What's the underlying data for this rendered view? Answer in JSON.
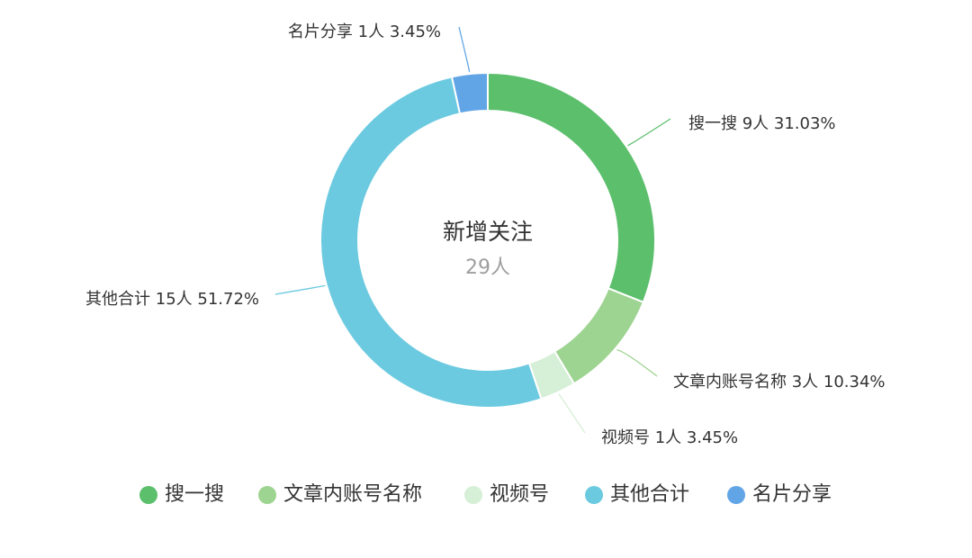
{
  "chart_data": {
    "type": "pie",
    "variant": "donut",
    "center": {
      "title": "新增关注",
      "value": "29人"
    },
    "slices": [
      {
        "name": "搜一搜",
        "count": 9,
        "unit": "人",
        "percent": 31.03,
        "label": "搜一搜  9人  31.03%",
        "color": "#5BBF6C"
      },
      {
        "name": "文章内账号名称",
        "count": 3,
        "unit": "人",
        "percent": 10.34,
        "label": "文章内账号名称  3人  10.34%",
        "color": "#9ED491"
      },
      {
        "name": "视频号",
        "count": 1,
        "unit": "人",
        "percent": 3.45,
        "label": "视频号  1人  3.45%",
        "color": "#D6EFD7"
      },
      {
        "name": "其他合计",
        "count": 15,
        "unit": "人",
        "percent": 51.72,
        "label": "其他合计  15人  51.72%",
        "color": "#6CCAE0"
      },
      {
        "name": "名片分享",
        "count": 1,
        "unit": "人",
        "percent": 3.45,
        "label": "名片分享  1人  3.45%",
        "color": "#62A5E6"
      }
    ],
    "legend": {
      "position": "bottom",
      "items": [
        "搜一搜",
        "文章内账号名称",
        "视频号",
        "其他合计",
        "名片分享"
      ]
    }
  }
}
